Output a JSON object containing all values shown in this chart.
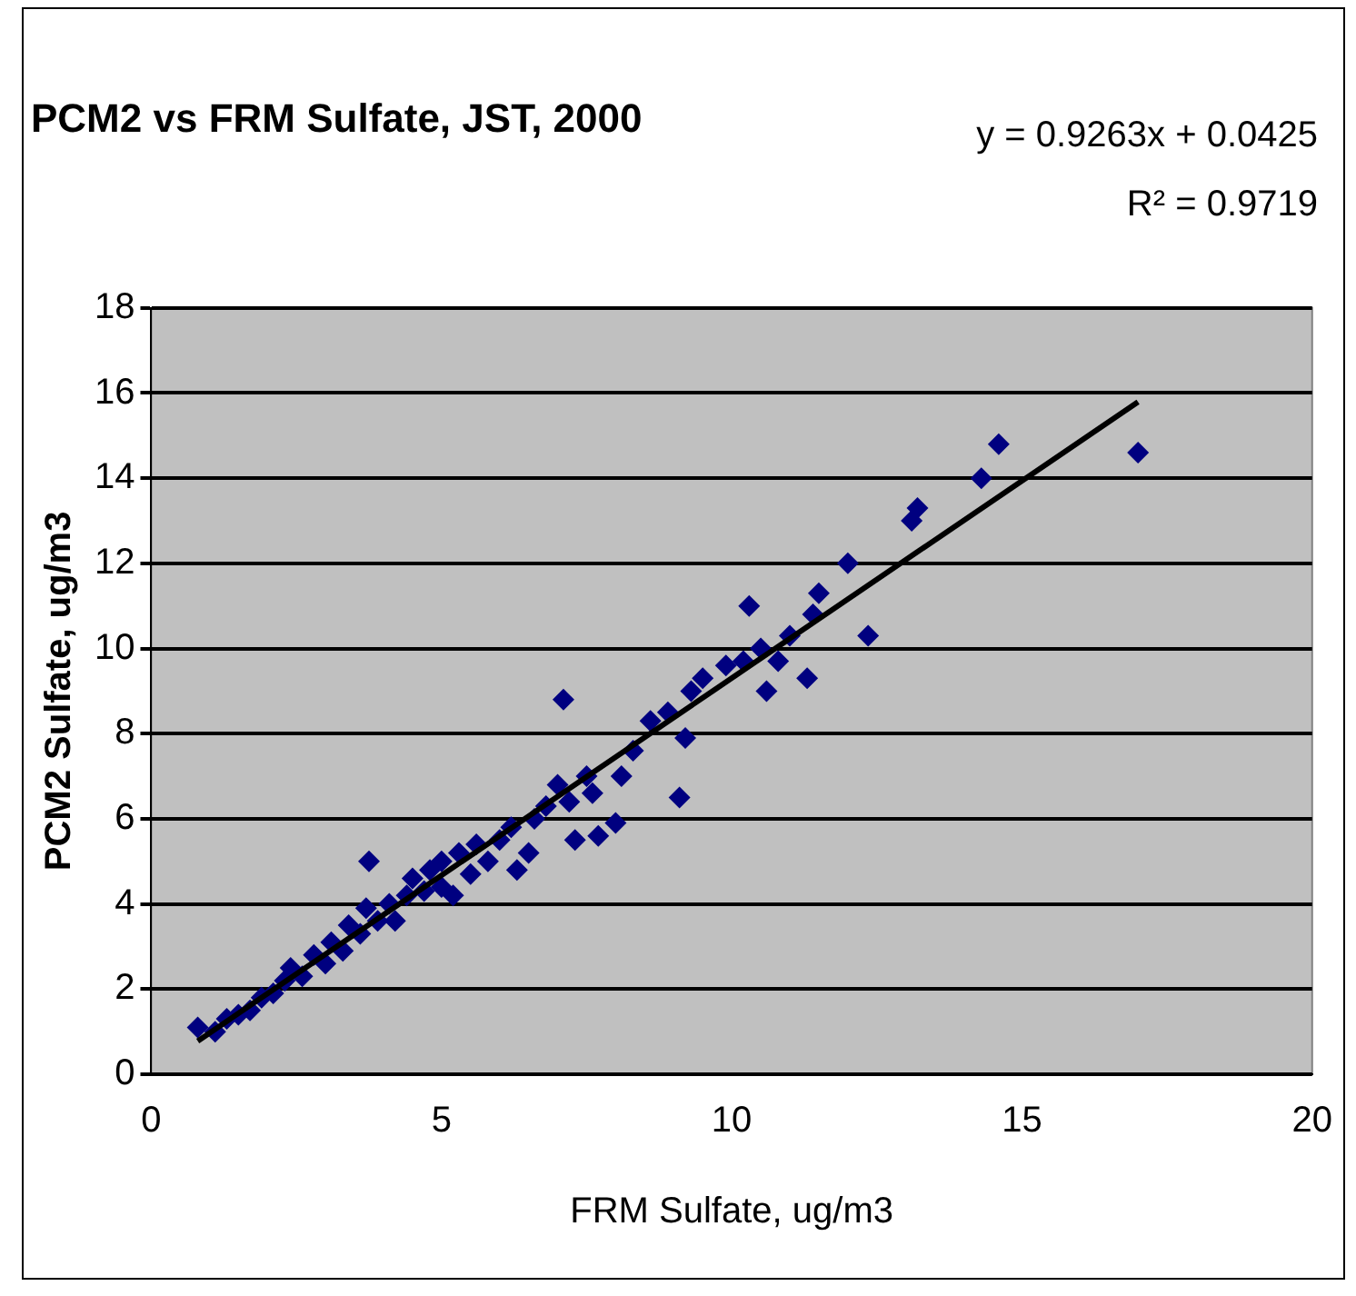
{
  "chart_data": {
    "type": "scatter",
    "title": "PCM2 vs FRM Sulfate, JST, 2000",
    "xlabel": "FRM Sulfate, ug/m3",
    "ylabel": "PCM2 Sulfate, ug/m3",
    "annotations": [
      "y = 0.9263x + 0.0425",
      "R² = 0.9719"
    ],
    "xlim": [
      0,
      20
    ],
    "xticks": [
      0,
      5,
      10,
      15,
      20
    ],
    "ylim": [
      0,
      18
    ],
    "yticks": [
      0,
      2,
      4,
      6,
      8,
      10,
      12,
      14,
      16,
      18
    ],
    "grid": "y",
    "legend": false,
    "marker": "diamond",
    "series": [
      {
        "color": "#000080",
        "x": [
          0.8,
          1.1,
          1.3,
          1.5,
          1.7,
          1.9,
          2.1,
          2.3,
          2.4,
          2.6,
          2.8,
          3.0,
          3.1,
          3.3,
          3.4,
          3.6,
          3.7,
          3.75,
          3.9,
          4.1,
          4.2,
          4.4,
          4.5,
          4.7,
          4.8,
          5.0,
          5.0,
          5.2,
          5.3,
          5.5,
          5.6,
          5.8,
          6.0,
          6.2,
          6.3,
          6.5,
          6.6,
          6.8,
          7.0,
          7.1,
          7.2,
          7.3,
          7.5,
          7.6,
          7.7,
          8.0,
          8.1,
          8.3,
          8.6,
          8.9,
          9.1,
          9.2,
          9.3,
          9.5,
          9.9,
          10.2,
          10.3,
          10.5,
          10.6,
          10.8,
          11.0,
          11.3,
          11.4,
          11.5,
          12.0,
          12.35,
          13.1,
          13.2,
          14.3,
          14.6,
          17.0
        ],
        "values": [
          1.1,
          1.0,
          1.3,
          1.4,
          1.5,
          1.8,
          1.9,
          2.2,
          2.5,
          2.3,
          2.8,
          2.6,
          3.1,
          2.9,
          3.5,
          3.3,
          3.9,
          5.0,
          3.6,
          4.0,
          3.6,
          4.2,
          4.6,
          4.3,
          4.8,
          4.4,
          5.0,
          4.2,
          5.2,
          4.7,
          5.4,
          5.0,
          5.5,
          5.8,
          4.8,
          5.2,
          6.0,
          6.3,
          6.8,
          8.8,
          6.4,
          5.5,
          7.0,
          6.6,
          5.6,
          5.9,
          7.0,
          7.6,
          8.3,
          8.5,
          6.5,
          7.9,
          9.0,
          9.3,
          9.6,
          9.7,
          11.0,
          10.0,
          9.0,
          9.7,
          10.3,
          9.3,
          10.8,
          11.3,
          12.0,
          10.3,
          13.0,
          13.3,
          14.0,
          14.8,
          14.6
        ]
      },
      {
        "type": "line",
        "color": "#000000",
        "marker": "none",
        "line_style": "solid",
        "x": [
          0.8,
          17.0
        ],
        "values": [
          0.78,
          15.79
        ]
      }
    ]
  }
}
